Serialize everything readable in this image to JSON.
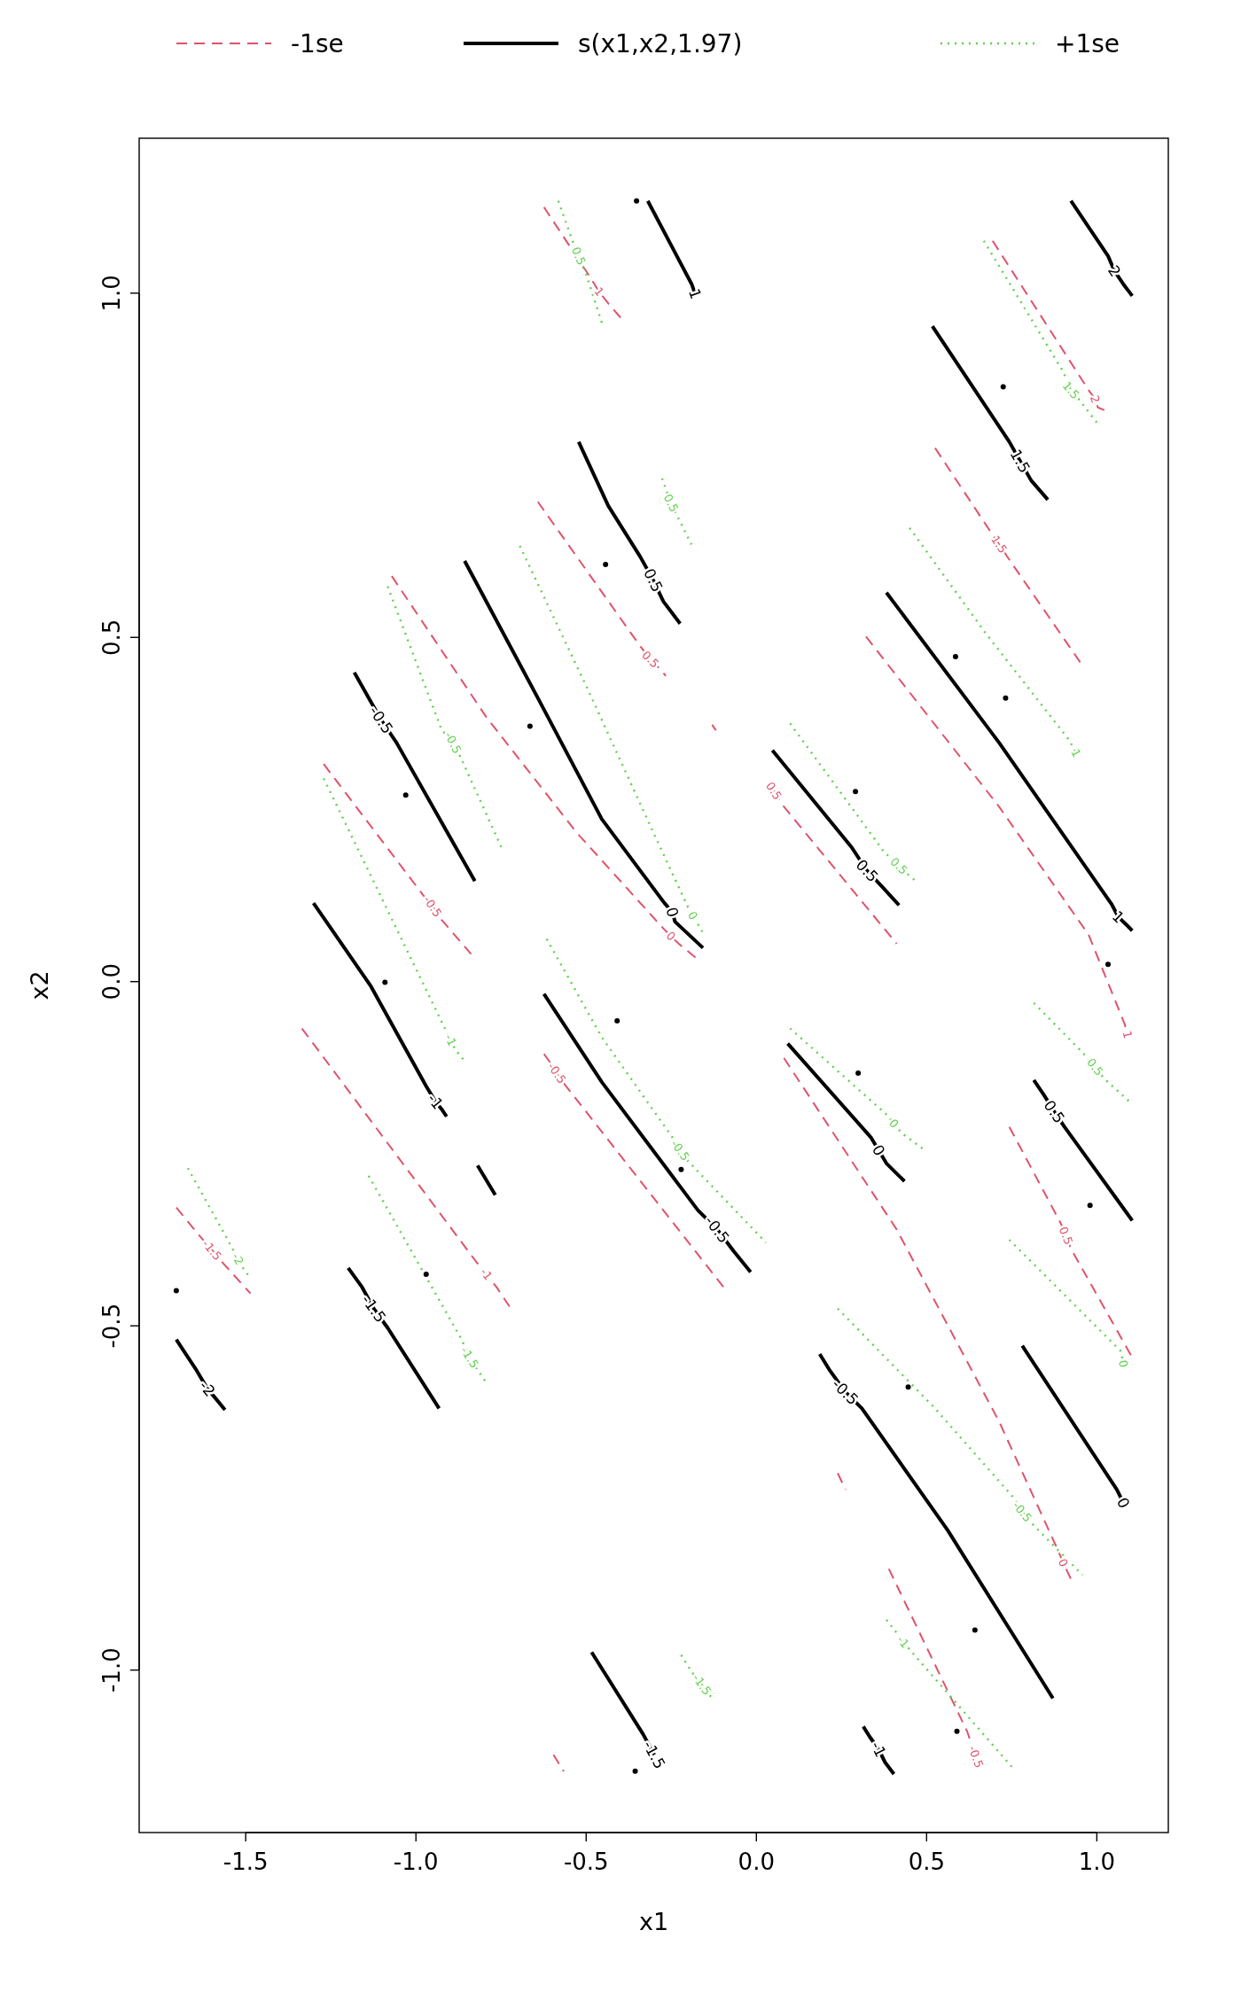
{
  "chart_data": {
    "type": "line",
    "xlabel": "x1",
    "ylabel": "x2",
    "xlim": [
      -1.813,
      1.21
    ],
    "ylim": [
      -1.236,
      1.225
    ],
    "xticks": [
      -1.5,
      {
        "value": -1,
        "label": "-1.0"
      },
      -0.5,
      {
        "value": 0,
        "label": "0.0"
      },
      0.5,
      {
        "value": 1,
        "label": "1.0"
      }
    ],
    "yticks": [
      {
        "value": -1,
        "label": "-1.0"
      },
      -0.5,
      {
        "value": 0,
        "label": "0.0"
      },
      0.5,
      {
        "value": 1,
        "label": "1.0"
      }
    ],
    "grid": false,
    "legend": "top",
    "marker": "none",
    "series": [
      {
        "name": "-1se",
        "color": "#df536b",
        "line_style": "dashed",
        "x": [
          -0.624,
          -0.492,
          -0.462,
          -0.435,
          -0.386,
          null,
          0.694,
          0.976,
          0.995,
          1.003,
          1.022,
          null,
          0.525,
          0.675,
          0.713,
          0.751,
          0.958,
          null,
          -0.642,
          -0.341,
          -0.311,
          -0.285,
          -0.266,
          null,
          -0.13,
          -0.119,
          null,
          0.322,
          0.713,
          0.976,
          1.082,
          1.09,
          null,
          -1.071,
          -0.793,
          -0.529,
          -0.273,
          -0.251,
          -0.228,
          -0.179,
          null,
          0.051,
          0.081,
          0.412,
          null,
          -1.271,
          -0.981,
          -0.951,
          -0.925,
          -0.838,
          null,
          -1.335,
          -0.823,
          -0.793,
          -0.763,
          -0.725,
          null,
          -0.624,
          -0.605,
          -0.586,
          -0.559,
          -0.096,
          null,
          0.081,
          0.412,
          0.713,
          0.885,
          0.901,
          0.932,
          null,
          0.743,
          0.894,
          0.909,
          0.924,
          1.104,
          null,
          -1.704,
          -1.636,
          -1.599,
          -1.561,
          -1.486,
          null,
          0.239,
          0.262,
          null,
          0.389,
          0.619,
          0.645,
          null,
          -0.596,
          -0.566
        ],
        "values": [
          1.125,
          1.026,
          1.002,
          0.985,
          0.957,
          null,
          1.076,
          0.859,
          0.846,
          0.834,
          0.83,
          null,
          0.775,
          0.663,
          0.635,
          0.607,
          0.459,
          null,
          0.697,
          0.487,
          0.468,
          0.455,
          0.444,
          null,
          0.373,
          0.365,
          null,
          0.501,
          0.254,
          0.068,
          -0.062,
          -0.077,
          null,
          0.589,
          0.384,
          0.217,
          0.077,
          0.066,
          0.055,
          0.035,
          null,
          0.277,
          0.254,
          0.055,
          null,
          0.316,
          0.127,
          0.109,
          0.09,
          0.04,
          null,
          -0.068,
          -0.407,
          -0.425,
          -0.444,
          -0.472,
          null,
          -0.105,
          -0.118,
          -0.133,
          -0.152,
          -0.444,
          null,
          -0.111,
          -0.36,
          -0.639,
          -0.825,
          -0.844,
          -0.876,
          null,
          -0.211,
          -0.351,
          -0.369,
          -0.388,
          -0.546,
          null,
          -0.328,
          -0.369,
          -0.39,
          -0.412,
          -0.453,
          null,
          -0.714,
          -0.738,
          null,
          -0.853,
          -1.089,
          -1.126,
          null,
          -1.123,
          -1.147
        ]
      },
      {
        "name": "s(x1,x2,1.97)",
        "color": "#000000",
        "line_style": "solid",
        "x": [
          -0.319,
          -0.19,
          -0.18,
          null,
          0.924,
          1.033,
          1.052,
          1.078,
          1.104,
          null,
          0.517,
          0.743,
          0.775,
          0.807,
          0.856,
          null,
          -0.522,
          -0.435,
          -0.341,
          -0.303,
          -0.273,
          -0.224,
          null,
          0.382,
          0.713,
          1.044,
          1.063,
          1.086,
          1.104,
          null,
          -0.857,
          -0.642,
          -0.454,
          -0.27,
          -0.247,
          -0.239,
          -0.157,
          null,
          -1.181,
          -1.132,
          -1.102,
          -1.057,
          -0.827,
          null,
          0.047,
          0.28,
          0.325,
          0.367,
          0.419,
          null,
          -1.301,
          -1.132,
          -0.97,
          -0.943,
          -0.925,
          -0.91,
          null,
          -0.819,
          -0.767,
          null,
          -0.624,
          -0.454,
          -0.172,
          -0.115,
          -0.066,
          -0.017,
          null,
          0.092,
          0.336,
          0.359,
          0.382,
          0.435,
          null,
          0.815,
          0.845,
          0.875,
          0.905,
          1.104,
          null,
          -1.704,
          -1.644,
          -1.613,
          -1.584,
          -1.561,
          null,
          -1.199,
          -1.158,
          -1.124,
          -1.083,
          -0.932,
          null,
          0.186,
          0.216,
          0.261,
          0.31,
          0.562,
          0.871,
          null,
          0.781,
          1.059,
          1.078,
          null,
          -0.484,
          -0.333,
          -0.3,
          null,
          0.314,
          0.333,
          0.359,
          0.378,
          0.404
        ],
        "values": [
          1.134,
          1.013,
          0.999,
          null,
          1.134,
          1.054,
          1.032,
          1.013,
          0.996,
          null,
          0.952,
          0.784,
          0.756,
          0.728,
          0.7,
          null,
          0.784,
          0.691,
          0.617,
          0.583,
          0.552,
          0.52,
          null,
          0.565,
          0.347,
          0.112,
          0.094,
          0.083,
          0.074,
          null,
          0.611,
          0.412,
          0.236,
          0.114,
          0.101,
          0.087,
          0.049,
          null,
          0.449,
          0.406,
          0.38,
          0.347,
          0.146,
          null,
          0.336,
          0.195,
          0.161,
          0.139,
          0.111,
          null,
          0.114,
          -0.007,
          -0.152,
          -0.174,
          -0.185,
          -0.196,
          null,
          -0.267,
          -0.31,
          null,
          -0.018,
          -0.146,
          -0.332,
          -0.36,
          -0.392,
          -0.422,
          null,
          -0.09,
          -0.226,
          -0.245,
          -0.264,
          -0.29,
          null,
          -0.143,
          -0.165,
          -0.189,
          -0.211,
          -0.347,
          null,
          -0.52,
          -0.565,
          -0.591,
          -0.608,
          -0.622,
          null,
          -0.416,
          -0.444,
          -0.475,
          -0.503,
          -0.62,
          null,
          -0.541,
          -0.565,
          -0.596,
          -0.62,
          -0.797,
          -1.041,
          null,
          -0.529,
          -0.738,
          -0.757,
          null,
          -0.974,
          -1.093,
          -1.123,
          null,
          -1.082,
          -1.097,
          -1.115,
          -1.134,
          -1.151
        ]
      },
      {
        "name": "+1se",
        "color": "#61d04f",
        "line_style": "dotted",
        "x": [
          -0.582,
          -0.537,
          -0.522,
          -0.499,
          -0.454,
          null,
          0.668,
          0.901,
          0.924,
          0.947,
          1.0,
          null,
          -0.277,
          -0.251,
          -0.191,
          null,
          0.45,
          0.675,
          0.92,
          0.939,
          null,
          -0.695,
          -0.492,
          -0.303,
          -0.198,
          -0.187,
          -0.153,
          null,
          0.099,
          0.374,
          0.419,
          0.442,
          0.468,
          null,
          -1.083,
          -0.925,
          -0.891,
          -0.868,
          -0.748,
          null,
          -1.271,
          -0.921,
          -0.898,
          -0.883,
          -0.857,
          null,
          0.099,
          0.382,
          0.404,
          0.427,
          0.495,
          null,
          -0.616,
          -0.454,
          -0.247,
          -0.224,
          -0.202,
          0.028,
          null,
          0.815,
          0.958,
          0.995,
          1.022,
          1.104,
          null,
          -1.67,
          -1.553,
          -1.523,
          -1.508,
          -1.486,
          null,
          -1.139,
          -0.868,
          -0.842,
          -0.823,
          -0.793,
          null,
          0.743,
          1.071,
          1.078,
          null,
          0.239,
          0.525,
          0.751,
          0.781,
          0.811,
          0.958,
          null,
          0.382,
          0.412,
          0.431,
          0.457,
          0.758,
          null,
          -0.221,
          -0.191,
          -0.16,
          -0.13
        ],
        "values": [
          1.134,
          1.072,
          1.054,
          1.026,
          0.957,
          null,
          1.076,
          0.886,
          0.859,
          0.846,
          0.812,
          null,
          0.731,
          0.695,
          0.635,
          null,
          0.659,
          0.505,
          0.35,
          0.332,
          null,
          0.633,
          0.421,
          0.217,
          0.105,
          0.096,
          0.068,
          null,
          0.375,
          0.189,
          0.168,
          0.157,
          0.146,
          null,
          0.574,
          0.366,
          0.347,
          0.325,
          0.194,
          null,
          0.295,
          -0.062,
          -0.085,
          -0.1,
          -0.115,
          null,
          -0.068,
          -0.193,
          -0.206,
          -0.22,
          -0.245,
          null,
          0.062,
          -0.081,
          -0.226,
          -0.245,
          -0.26,
          -0.379,
          null,
          -0.031,
          -0.103,
          -0.124,
          -0.141,
          -0.178,
          null,
          -0.271,
          -0.375,
          -0.403,
          -0.416,
          -0.431,
          null,
          -0.282,
          -0.518,
          -0.546,
          -0.561,
          -0.583,
          null,
          -0.375,
          -0.537,
          -0.555,
          null,
          -0.475,
          -0.62,
          -0.747,
          -0.77,
          -0.788,
          -0.862,
          null,
          -0.927,
          -0.946,
          -0.959,
          -0.974,
          -1.145,
          null,
          -0.978,
          -1.002,
          -1.021,
          -1.041
        ]
      },
      {
        "type": "scatter",
        "color": "#000000",
        "marker": "circle",
        "x": [
          -0.352,
          0.725,
          -0.443,
          0.585,
          -0.665,
          -1.03,
          0.291,
          0.732,
          -1.091,
          -0.409,
          0.299,
          1.033,
          0.98,
          -0.221,
          -0.97,
          -1.704,
          0.446,
          0.642,
          -0.356,
          0.589
        ],
        "values": [
          1.134,
          0.864,
          0.606,
          0.472,
          0.371,
          0.271,
          0.276,
          0.412,
          -0.001,
          -0.057,
          -0.133,
          0.025,
          -0.325,
          -0.273,
          -0.425,
          -0.449,
          -0.589,
          -0.942,
          -1.147,
          -1.089
        ]
      }
    ],
    "annotations": [
      {
        "text": "1",
        "x": -0.462,
        "y": 1.002
      },
      {
        "text": "2",
        "x": 0.995,
        "y": 0.846
      },
      {
        "text": "1.5",
        "x": 0.713,
        "y": 0.635
      },
      {
        "text": "0.5",
        "x": -0.311,
        "y": 0.468
      },
      {
        "text": "1",
        "x": 1.09,
        "y": -0.077
      },
      {
        "text": "0",
        "x": -0.251,
        "y": 0.066
      },
      {
        "text": "0.5",
        "x": 0.051,
        "y": 0.277
      },
      {
        "text": "-0.5",
        "x": -0.951,
        "y": 0.109
      },
      {
        "text": "-1",
        "x": -0.793,
        "y": -0.425
      },
      {
        "text": "-0.5",
        "x": -0.586,
        "y": -0.133
      },
      {
        "text": "0",
        "x": 0.901,
        "y": -0.844
      },
      {
        "text": "0.5",
        "x": 0.909,
        "y": -0.369
      },
      {
        "text": "-1.5",
        "x": -1.599,
        "y": -0.39
      },
      {
        "text": "-0.5",
        "x": 0.645,
        "y": -1.126
      },
      {
        "text": "1",
        "x": -0.18,
        "y": 0.999
      },
      {
        "text": "2",
        "x": 1.052,
        "y": 1.032
      },
      {
        "text": "1.5",
        "x": 0.775,
        "y": 0.756
      },
      {
        "text": "0.5",
        "x": -0.303,
        "y": 0.583
      },
      {
        "text": "1",
        "x": 1.063,
        "y": 0.094
      },
      {
        "text": "0",
        "x": -0.247,
        "y": 0.101
      },
      {
        "text": "-0.5",
        "x": -1.102,
        "y": 0.38
      },
      {
        "text": "0.5",
        "x": 0.325,
        "y": 0.161
      },
      {
        "text": "-1",
        "x": -0.943,
        "y": -0.174
      },
      {
        "text": "-0.5",
        "x": -0.115,
        "y": -0.36
      },
      {
        "text": "0",
        "x": 0.359,
        "y": -0.245
      },
      {
        "text": "0.5",
        "x": 0.875,
        "y": -0.189
      },
      {
        "text": "-2",
        "x": -1.613,
        "y": -0.591
      },
      {
        "text": "-1.5",
        "x": -1.124,
        "y": -0.475
      },
      {
        "text": "-0.5",
        "x": 0.261,
        "y": -0.596
      },
      {
        "text": "0",
        "x": 1.078,
        "y": -0.757
      },
      {
        "text": "-1.5",
        "x": -0.3,
        "y": -1.123
      },
      {
        "text": "-1",
        "x": 0.359,
        "y": -1.115
      },
      {
        "text": "0.5",
        "x": -0.522,
        "y": 1.054
      },
      {
        "text": "1.5",
        "x": 0.924,
        "y": 0.859
      },
      {
        "text": "0.5",
        "x": -0.251,
        "y": 0.695
      },
      {
        "text": "1",
        "x": 0.939,
        "y": 0.332
      },
      {
        "text": "0",
        "x": -0.187,
        "y": 0.096
      },
      {
        "text": "0.5",
        "x": 0.419,
        "y": 0.168
      },
      {
        "text": "-0.5",
        "x": -0.891,
        "y": 0.347
      },
      {
        "text": "-1",
        "x": -0.898,
        "y": -0.085
      },
      {
        "text": "0",
        "x": 0.404,
        "y": -0.206
      },
      {
        "text": "-0.5",
        "x": -0.224,
        "y": -0.245
      },
      {
        "text": "0.5",
        "x": 0.995,
        "y": -0.124
      },
      {
        "text": "-2",
        "x": -1.523,
        "y": -0.403
      },
      {
        "text": "-1.5",
        "x": -0.842,
        "y": -0.546
      },
      {
        "text": "0",
        "x": 1.078,
        "y": -0.555
      },
      {
        "text": "-0.5",
        "x": 0.781,
        "y": -0.77
      },
      {
        "text": "-1",
        "x": 0.431,
        "y": -0.959
      },
      {
        "text": "-1.5",
        "x": -0.16,
        "y": -1.021
      }
    ]
  }
}
